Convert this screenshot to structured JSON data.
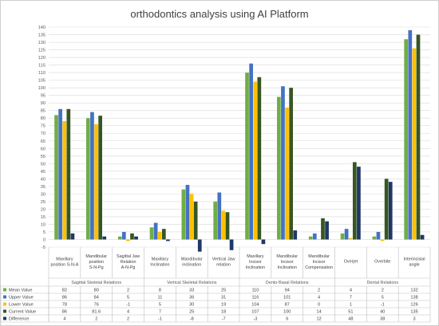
{
  "chart_data": {
    "type": "bar",
    "title": "orthodontics analysis using AI Platform",
    "ylim": [
      -5,
      140
    ],
    "ytick_step": 5,
    "grid": true,
    "legend": "table-left",
    "categories": [
      "Maxillary position S-N-A",
      "Mandibular position S-N-Pg",
      "Sagittal Jaw Relation A-N-Pg",
      "Maxillary Inclination",
      "Mandibular inclination",
      "Vertical Jaw relation",
      "Maxillary Incisor Inclination",
      "Mandibular Incisor Inclination",
      "Mandibular Incisor Compensation",
      "Overjet",
      "Overbite",
      "Interincisial angle"
    ],
    "groups": [
      {
        "label": "Sagittal Skeletal Relations",
        "span": 3
      },
      {
        "label": "Vertical Skeletal Relations",
        "span": 3
      },
      {
        "label": "Dento-Basal Relations",
        "span": 3
      },
      {
        "label": "Dental Relations",
        "span": 3
      }
    ],
    "series": [
      {
        "name": "Mean Value",
        "color": "#70ad47",
        "values": [
          82,
          80,
          2,
          8,
          33,
          25,
          110,
          94,
          2,
          4,
          2,
          132
        ],
        "labels": [
          "82",
          "80",
          "2",
          "8",
          "33",
          "25",
          "110",
          "94",
          "2",
          "4",
          "2",
          "132"
        ]
      },
      {
        "name": "Upper Value",
        "color": "#4472c4",
        "values": [
          86,
          84,
          5,
          11,
          36,
          31,
          116,
          101,
          4,
          7,
          5,
          138
        ],
        "labels": [
          "86",
          "84",
          "5",
          "11",
          "36",
          "31",
          "116",
          "101",
          "4",
          "7",
          "5",
          "138"
        ]
      },
      {
        "name": "Lower Value",
        "color": "#ffc000",
        "values": [
          78,
          76,
          -1,
          5,
          30,
          19,
          104,
          87,
          0,
          1,
          -1,
          126
        ],
        "labels": [
          "78",
          "76",
          "-1",
          "5",
          "30",
          "19",
          "104",
          "87",
          "0",
          "1",
          "-1",
          "126"
        ]
      },
      {
        "name": "Current Value",
        "color": "#375623",
        "values": [
          86,
          81.6,
          4,
          7,
          25,
          18,
          107,
          100,
          14,
          51,
          40,
          135
        ],
        "labels": [
          "86",
          "81.6",
          "4",
          "7",
          "25",
          "18",
          "107",
          "100",
          "14",
          "51",
          "40",
          "135"
        ]
      },
      {
        "name": "Difference",
        "color": "#203864",
        "values": [
          4,
          2,
          2,
          -1,
          -8,
          -7,
          -3,
          6,
          12,
          48,
          38,
          3
        ],
        "labels": [
          "4",
          "2",
          "2",
          "-1",
          "-8",
          "-7",
          "-3",
          "6",
          "12",
          "48",
          "38",
          "3"
        ]
      }
    ]
  }
}
